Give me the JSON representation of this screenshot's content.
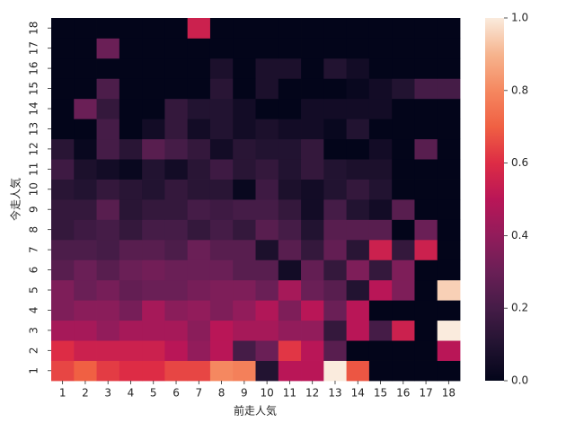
{
  "chart_data": {
    "type": "heatmap",
    "xlabel": "前走人気",
    "ylabel": "今走人気",
    "x_categories": [
      1,
      2,
      3,
      4,
      5,
      6,
      7,
      8,
      9,
      10,
      11,
      12,
      13,
      14,
      15,
      16,
      17,
      18
    ],
    "y_categories": [
      1,
      2,
      3,
      4,
      5,
      6,
      7,
      8,
      9,
      10,
      11,
      12,
      13,
      14,
      15,
      16,
      17,
      18
    ],
    "values": [
      [
        0.65,
        0.7,
        0.63,
        0.6,
        0.6,
        0.65,
        0.65,
        0.8,
        0.78,
        0.1,
        0.5,
        0.5,
        1.0,
        0.68,
        0,
        0,
        0,
        0
      ],
      [
        0.6,
        0.55,
        0.55,
        0.55,
        0.55,
        0.5,
        0.4,
        0.5,
        0.2,
        0.3,
        0.62,
        0.5,
        0.25,
        0,
        0,
        0,
        0,
        0.5
      ],
      [
        0.45,
        0.45,
        0.4,
        0.45,
        0.45,
        0.45,
        0.38,
        0.5,
        0.45,
        0.45,
        0.4,
        0.4,
        0.15,
        0.5,
        0.2,
        0.55,
        0,
        1.0
      ],
      [
        0.35,
        0.38,
        0.38,
        0.33,
        0.45,
        0.38,
        0.4,
        0.35,
        0.4,
        0.48,
        0.35,
        0.5,
        0.3,
        0.5,
        0,
        0,
        0,
        0
      ],
      [
        0.35,
        0.3,
        0.33,
        0.28,
        0.3,
        0.3,
        0.33,
        0.35,
        0.35,
        0.3,
        0.45,
        0.3,
        0.25,
        0.1,
        0.5,
        0.35,
        0,
        0.95
      ],
      [
        0.25,
        0.3,
        0.25,
        0.3,
        0.32,
        0.3,
        0.3,
        0.3,
        0.25,
        0.25,
        0.05,
        0.28,
        0.15,
        0.35,
        0.15,
        0.35,
        0,
        0
      ],
      [
        0.22,
        0.22,
        0.2,
        0.25,
        0.25,
        0.22,
        0.3,
        0.25,
        0.25,
        0.08,
        0.25,
        0.15,
        0.28,
        0.12,
        0.55,
        0.15,
        0.55,
        0
      ],
      [
        0.15,
        0.18,
        0.2,
        0.15,
        0.2,
        0.2,
        0.15,
        0.2,
        0.15,
        0.25,
        0.2,
        0.1,
        0.25,
        0.25,
        0.25,
        0,
        0.3,
        0
      ],
      [
        0.15,
        0.15,
        0.25,
        0.12,
        0.15,
        0.15,
        0.2,
        0.18,
        0.2,
        0.2,
        0.15,
        0.05,
        0.2,
        0.1,
        0.05,
        0.25,
        0,
        0
      ],
      [
        0.12,
        0.1,
        0.15,
        0.12,
        0.1,
        0.15,
        0.12,
        0.12,
        0.02,
        0.18,
        0.08,
        0.05,
        0.1,
        0.15,
        0.1,
        0,
        0,
        0
      ],
      [
        0.18,
        0.08,
        0.05,
        0.02,
        0.1,
        0.05,
        0.12,
        0.18,
        0.12,
        0.15,
        0.1,
        0.15,
        0.1,
        0.08,
        0.08,
        0,
        0,
        0
      ],
      [
        0.12,
        0.02,
        0.2,
        0.12,
        0.25,
        0.2,
        0.15,
        0.05,
        0.12,
        0.1,
        0.1,
        0.15,
        0,
        0,
        0.05,
        0,
        0.25,
        0
      ],
      [
        0,
        0,
        0.2,
        0,
        0.05,
        0.15,
        0.05,
        0.1,
        0.05,
        0.08,
        0.05,
        0.05,
        0.02,
        0.1,
        0,
        0,
        0,
        0
      ],
      [
        0,
        0.3,
        0.15,
        0,
        0,
        0.15,
        0.1,
        0.1,
        0.05,
        0,
        0,
        0.05,
        0.05,
        0.05,
        0.05,
        0,
        0,
        0
      ],
      [
        0,
        0,
        0.22,
        0,
        0,
        0,
        0,
        0.12,
        0,
        0.08,
        0,
        0,
        0,
        0.02,
        0.05,
        0.1,
        0.2,
        0.2
      ],
      [
        0,
        0,
        0,
        0,
        0,
        0,
        0,
        0.08,
        0,
        0.08,
        0.08,
        0,
        0.1,
        0.05,
        0,
        0,
        0,
        0
      ],
      [
        0,
        0,
        0.3,
        0,
        0,
        0,
        0,
        0,
        0,
        0,
        0,
        0,
        0,
        0,
        0,
        0,
        0,
        0
      ],
      [
        0,
        0,
        0,
        0,
        0,
        0,
        0.55,
        0,
        0,
        0,
        0,
        0,
        0,
        0,
        0,
        0,
        0,
        0
      ]
    ],
    "clim": [
      0,
      1
    ],
    "cticks": [
      {
        "value": 0,
        "label": "0.0"
      },
      0.2,
      0.4,
      0.6,
      0.8,
      {
        "value": 1,
        "label": "1.0"
      }
    ],
    "colormap": [
      "#03051a",
      "#221331",
      "#451c47",
      "#6a1f56",
      "#921c5b",
      "#b91657",
      "#dd2c45",
      "#f06043",
      "#f58860",
      "#f6b48e",
      "#faebdd"
    ]
  }
}
